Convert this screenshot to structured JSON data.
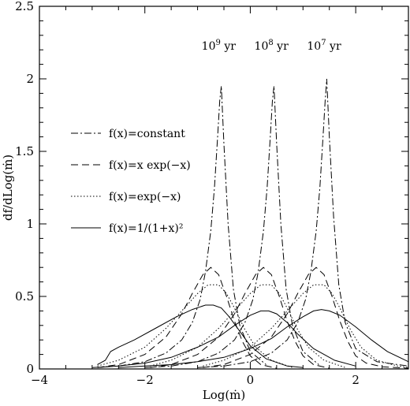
{
  "chart_data": {
    "type": "line",
    "title": "",
    "xlabel": "Log(ṁ)",
    "ylabel": "df/dLog(ṁ)",
    "xlim": [
      -4,
      3
    ],
    "ylim": [
      0,
      2.5
    ],
    "x_major_ticks": [
      -4,
      -2,
      0,
      2
    ],
    "x_tick_labels": [
      "−4",
      "−2",
      "0",
      "2"
    ],
    "y_major_ticks": [
      0,
      0.5,
      1,
      1.5,
      2,
      2.5
    ],
    "y_tick_labels": [
      "0",
      "0.5",
      "1",
      "1.5",
      "2",
      "2.5"
    ],
    "grid": false,
    "legend_position": "center-left",
    "age_annotations": [
      {
        "base": "10",
        "exp": "9",
        "unit": " yr",
        "x": -0.6,
        "y": 2.2
      },
      {
        "base": "10",
        "exp": "8",
        "unit": " yr",
        "x": 0.4,
        "y": 2.2
      },
      {
        "base": "10",
        "exp": "7",
        "unit": " yr",
        "x": 1.4,
        "y": 2.2
      }
    ],
    "series": [
      {
        "name": "f(x)=constant",
        "dash": "dashdot",
        "ages": [
          "10⁹ yr",
          "10⁸ yr",
          "10⁷ yr"
        ],
        "curves": [
          {
            "x": [
              -3.0,
              -2.5,
              -2.0,
              -1.6,
              -1.3,
              -1.1,
              -0.95,
              -0.85,
              -0.75,
              -0.68,
              -0.62,
              -0.58,
              -0.55,
              -0.5,
              -0.42,
              -0.32,
              -0.2,
              0.0,
              0.3
            ],
            "y": [
              0.01,
              0.02,
              0.05,
              0.11,
              0.2,
              0.32,
              0.48,
              0.67,
              0.95,
              1.25,
              1.6,
              1.85,
              1.95,
              1.55,
              1.0,
              0.55,
              0.3,
              0.12,
              0.03
            ]
          },
          {
            "x": [
              -2.0,
              -1.5,
              -1.0,
              -0.6,
              -0.3,
              -0.1,
              0.05,
              0.15,
              0.25,
              0.32,
              0.38,
              0.42,
              0.45,
              0.5,
              0.58,
              0.68,
              0.8,
              1.0,
              1.3
            ],
            "y": [
              0.01,
              0.02,
              0.05,
              0.11,
              0.2,
              0.32,
              0.48,
              0.67,
              0.95,
              1.25,
              1.6,
              1.85,
              1.95,
              1.55,
              1.0,
              0.55,
              0.3,
              0.12,
              0.03
            ]
          },
          {
            "x": [
              -1.0,
              -0.5,
              0.0,
              0.4,
              0.7,
              0.9,
              1.05,
              1.15,
              1.25,
              1.32,
              1.38,
              1.42,
              1.45,
              1.5,
              1.58,
              1.68,
              1.8,
              2.0,
              2.4,
              3.0
            ],
            "y": [
              0.01,
              0.02,
              0.05,
              0.11,
              0.2,
              0.32,
              0.48,
              0.67,
              0.95,
              1.25,
              1.6,
              1.85,
              2.0,
              1.6,
              1.05,
              0.58,
              0.32,
              0.14,
              0.05,
              0.02
            ]
          }
        ]
      },
      {
        "name": "f(x)=x exp(−x)",
        "dash": "dashed",
        "ages": [
          "10⁹ yr",
          "10⁸ yr",
          "10⁷ yr"
        ],
        "curves": [
          {
            "x": [
              -2.9,
              -2.5,
              -2.0,
              -1.6,
              -1.3,
              -1.1,
              -0.9,
              -0.75,
              -0.6,
              -0.45,
              -0.3,
              -0.15,
              0.0,
              0.2,
              0.5
            ],
            "y": [
              0.01,
              0.03,
              0.1,
              0.22,
              0.38,
              0.52,
              0.65,
              0.7,
              0.65,
              0.5,
              0.33,
              0.19,
              0.09,
              0.03,
              0.005
            ]
          },
          {
            "x": [
              -1.9,
              -1.5,
              -1.0,
              -0.6,
              -0.3,
              -0.1,
              0.1,
              0.25,
              0.4,
              0.55,
              0.7,
              0.85,
              1.0,
              1.2,
              1.5
            ],
            "y": [
              0.01,
              0.03,
              0.1,
              0.22,
              0.38,
              0.52,
              0.65,
              0.7,
              0.65,
              0.5,
              0.33,
              0.19,
              0.09,
              0.03,
              0.005
            ]
          },
          {
            "x": [
              -0.9,
              -0.5,
              0.0,
              0.4,
              0.7,
              0.9,
              1.1,
              1.25,
              1.4,
              1.55,
              1.7,
              1.85,
              2.0,
              2.2,
              2.5,
              3.0
            ],
            "y": [
              0.01,
              0.03,
              0.1,
              0.22,
              0.38,
              0.52,
              0.65,
              0.7,
              0.65,
              0.5,
              0.33,
              0.19,
              0.09,
              0.04,
              0.015,
              0.005
            ]
          }
        ]
      },
      {
        "name": "f(x)=exp(−x)",
        "dash": "dotted",
        "ages": [
          "10⁹ yr",
          "10⁸ yr",
          "10⁷ yr"
        ],
        "curves": [
          {
            "x": [
              -2.9,
              -2.5,
              -2.0,
              -1.6,
              -1.3,
              -1.0,
              -0.8,
              -0.6,
              -0.45,
              -0.3,
              -0.1,
              0.1,
              0.4,
              0.8
            ],
            "y": [
              0.02,
              0.06,
              0.15,
              0.28,
              0.4,
              0.52,
              0.58,
              0.58,
              0.52,
              0.42,
              0.27,
              0.15,
              0.06,
              0.01
            ]
          },
          {
            "x": [
              -1.9,
              -1.5,
              -1.0,
              -0.6,
              -0.3,
              0.0,
              0.2,
              0.4,
              0.55,
              0.7,
              0.9,
              1.1,
              1.4,
              1.8
            ],
            "y": [
              0.02,
              0.06,
              0.15,
              0.28,
              0.4,
              0.52,
              0.58,
              0.58,
              0.52,
              0.42,
              0.27,
              0.15,
              0.06,
              0.01
            ]
          },
          {
            "x": [
              -0.9,
              -0.5,
              0.0,
              0.4,
              0.7,
              1.0,
              1.2,
              1.4,
              1.55,
              1.7,
              1.9,
              2.1,
              2.4,
              2.8,
              3.0
            ],
            "y": [
              0.02,
              0.06,
              0.15,
              0.28,
              0.4,
              0.52,
              0.58,
              0.58,
              0.52,
              0.42,
              0.27,
              0.15,
              0.06,
              0.02,
              0.01
            ]
          }
        ]
      },
      {
        "name": "f(x)=1/(1+x)²",
        "dash": "solid",
        "ages": [
          "10⁹ yr",
          "10⁸ yr",
          "10⁷ yr"
        ],
        "curves": [
          {
            "x": [
              -2.9,
              -2.75,
              -2.65,
              -2.5,
              -2.2,
              -1.8,
              -1.4,
              -1.1,
              -0.85,
              -0.7,
              -0.55,
              -0.4,
              -0.2,
              0.0,
              0.3,
              0.7,
              1.0
            ],
            "y": [
              0.03,
              0.06,
              0.12,
              0.15,
              0.2,
              0.28,
              0.36,
              0.41,
              0.44,
              0.44,
              0.42,
              0.36,
              0.26,
              0.16,
              0.07,
              0.02,
              0.01
            ]
          },
          {
            "x": [
              -2.9,
              -2.5,
              -2.0,
              -1.5,
              -1.0,
              -0.6,
              -0.3,
              0.0,
              0.2,
              0.35,
              0.5,
              0.7,
              0.9,
              1.2,
              1.6,
              2.0
            ],
            "y": [
              0.01,
              0.02,
              0.04,
              0.08,
              0.15,
              0.22,
              0.3,
              0.37,
              0.4,
              0.4,
              0.38,
              0.32,
              0.24,
              0.14,
              0.06,
              0.02
            ]
          },
          {
            "x": [
              -2.5,
              -2.0,
              -1.5,
              -1.0,
              -0.5,
              0.0,
              0.4,
              0.7,
              1.0,
              1.2,
              1.35,
              1.5,
              1.7,
              2.0,
              2.3,
              2.6,
              3.0
            ],
            "y": [
              0.01,
              0.02,
              0.03,
              0.05,
              0.08,
              0.14,
              0.21,
              0.29,
              0.36,
              0.4,
              0.41,
              0.4,
              0.37,
              0.29,
              0.2,
              0.12,
              0.05
            ]
          }
        ]
      }
    ]
  }
}
